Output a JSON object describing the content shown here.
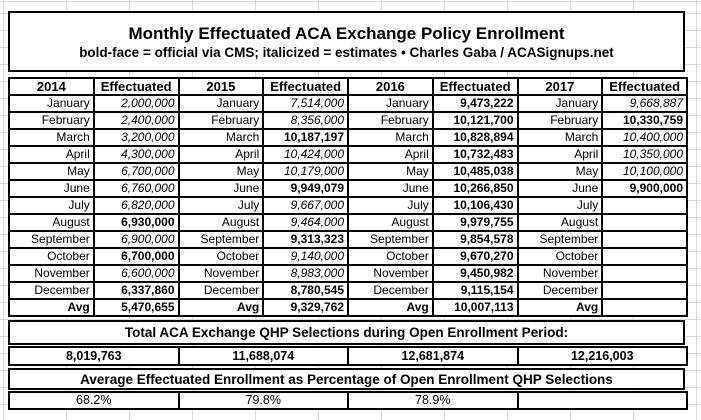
{
  "title": "Monthly Effectuated ACA Exchange Policy Enrollment",
  "subtitle": "bold-face = official via CMS; italicized = estimates  •  Charles Gaba / ACASignups.net",
  "legend": {
    "bold_meaning": "official via CMS",
    "italic_meaning": "estimates",
    "credit": "Charles Gaba / ACASignups.net"
  },
  "enrollment_table": {
    "headers": [
      "2014",
      "Effectuated",
      "2015",
      "Effectuated",
      "2016",
      "Effectuated",
      "2017",
      "Effectuated"
    ],
    "rows": [
      {
        "month": "January",
        "values": [
          {
            "v": "2,000,000",
            "k": "estimate"
          },
          {
            "v": "7,514,000",
            "k": "estimate"
          },
          {
            "v": "9,473,222",
            "k": "official"
          },
          {
            "v": "9,668,887",
            "k": "estimate"
          }
        ]
      },
      {
        "month": "February",
        "values": [
          {
            "v": "2,400,000",
            "k": "estimate"
          },
          {
            "v": "8,356,000",
            "k": "estimate"
          },
          {
            "v": "10,121,700",
            "k": "official"
          },
          {
            "v": "10,330,759",
            "k": "official"
          }
        ]
      },
      {
        "month": "March",
        "values": [
          {
            "v": "3,200,000",
            "k": "estimate"
          },
          {
            "v": "10,187,197",
            "k": "official"
          },
          {
            "v": "10,828,894",
            "k": "official"
          },
          {
            "v": "10,400,000",
            "k": "estimate"
          }
        ]
      },
      {
        "month": "April",
        "values": [
          {
            "v": "4,300,000",
            "k": "estimate"
          },
          {
            "v": "10,424,000",
            "k": "estimate"
          },
          {
            "v": "10,732,483",
            "k": "official"
          },
          {
            "v": "10,350,000",
            "k": "estimate"
          }
        ]
      },
      {
        "month": "May",
        "values": [
          {
            "v": "6,700,000",
            "k": "estimate"
          },
          {
            "v": "10,179,000",
            "k": "estimate"
          },
          {
            "v": "10,485,038",
            "k": "official"
          },
          {
            "v": "10,100,000",
            "k": "estimate"
          }
        ]
      },
      {
        "month": "June",
        "values": [
          {
            "v": "6,760,000",
            "k": "estimate"
          },
          {
            "v": "9,949,079",
            "k": "official"
          },
          {
            "v": "10,266,850",
            "k": "official"
          },
          {
            "v": "9,900,000",
            "k": "official"
          }
        ]
      },
      {
        "month": "July",
        "values": [
          {
            "v": "6,820,000",
            "k": "estimate"
          },
          {
            "v": "9,667,000",
            "k": "estimate"
          },
          {
            "v": "10,106,430",
            "k": "official"
          },
          {
            "v": "",
            "k": ""
          }
        ]
      },
      {
        "month": "August",
        "values": [
          {
            "v": "6,930,000",
            "k": "official"
          },
          {
            "v": "9,464,000",
            "k": "estimate"
          },
          {
            "v": "9,979,755",
            "k": "official"
          },
          {
            "v": "",
            "k": ""
          }
        ]
      },
      {
        "month": "September",
        "values": [
          {
            "v": "6,900,000",
            "k": "estimate"
          },
          {
            "v": "9,313,323",
            "k": "official"
          },
          {
            "v": "9,854,578",
            "k": "official"
          },
          {
            "v": "",
            "k": ""
          }
        ]
      },
      {
        "month": "October",
        "values": [
          {
            "v": "6,700,000",
            "k": "official"
          },
          {
            "v": "9,140,000",
            "k": "estimate"
          },
          {
            "v": "9,670,270",
            "k": "official"
          },
          {
            "v": "",
            "k": ""
          }
        ]
      },
      {
        "month": "November",
        "values": [
          {
            "v": "6,600,000",
            "k": "estimate"
          },
          {
            "v": "8,983,000",
            "k": "estimate"
          },
          {
            "v": "9,450,982",
            "k": "official"
          },
          {
            "v": "",
            "k": ""
          }
        ]
      },
      {
        "month": "December",
        "values": [
          {
            "v": "6,337,860",
            "k": "official"
          },
          {
            "v": "8,780,545",
            "k": "official"
          },
          {
            "v": "9,115,154",
            "k": "official"
          },
          {
            "v": "",
            "k": ""
          }
        ]
      },
      {
        "month": "Avg",
        "is_avg": true,
        "values": [
          {
            "v": "5,470,655",
            "k": "official"
          },
          {
            "v": "9,329,762",
            "k": "official"
          },
          {
            "v": "10,007,113",
            "k": "official"
          },
          {
            "v": "",
            "k": ""
          }
        ]
      }
    ]
  },
  "totals_section": {
    "header": "Total ACA Exchange QHP Selections during Open Enrollment Period:",
    "values": [
      "8,019,763",
      "11,688,074",
      "12,681,874",
      "12,216,003"
    ]
  },
  "percent_section": {
    "header": "Average Effectuated Enrollment as Percentage of Open Enrollment QHP Selections",
    "values": [
      "68.2%",
      "79.8%",
      "78.9%",
      ""
    ]
  },
  "colors": {
    "border": "#000000",
    "gridline": "#d9d9d9",
    "background": "#ffffff",
    "text": "#000000"
  }
}
